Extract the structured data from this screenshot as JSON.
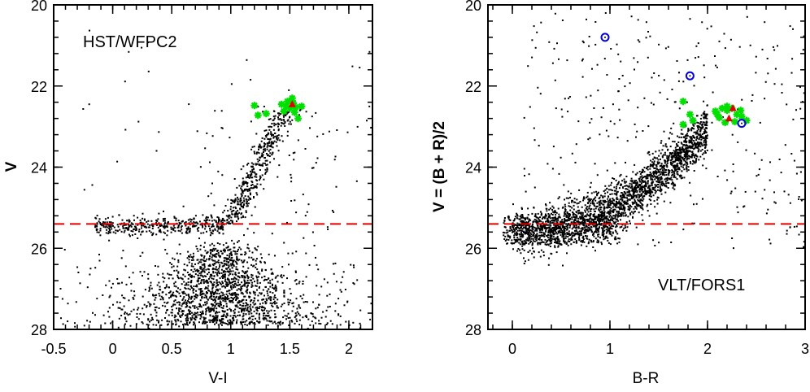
{
  "chart_data": [
    {
      "type": "scatter",
      "title": "HST/WFPC2",
      "xlabel": "V-I",
      "ylabel": "V",
      "xlim": [
        -0.5,
        2.2
      ],
      "ylim": [
        28,
        20
      ],
      "y_inverted": true,
      "x_ticks": [
        "-0.5",
        "0",
        "0.5",
        "1",
        "1.5",
        "2"
      ],
      "y_ticks": [
        "20",
        "22",
        "24",
        "26",
        "28"
      ],
      "reference_line": {
        "y": 25.4,
        "color": "#e00000",
        "style": "dashed"
      },
      "field_stars": {
        "color": "#000000",
        "components": [
          {
            "name": "RGB",
            "x_range": [
              1.0,
              1.5
            ],
            "y_range": [
              22.6,
              25.4
            ],
            "count": 420
          },
          {
            "name": "upper RGB spread",
            "x_range": [
              0.7,
              1.9
            ],
            "y_range": [
              22.5,
              26
            ],
            "count": 80
          },
          {
            "name": "HB",
            "x_range": [
              -0.15,
              0.95
            ],
            "y_range": [
              25.1,
              25.8
            ],
            "count": 380
          },
          {
            "name": "MS/SGB",
            "x_range": [
              0.1,
              1.7
            ],
            "y_range": [
              25.8,
              27.9
            ],
            "count": 1500
          },
          {
            "name": "faint halo",
            "x_range": [
              -0.45,
              2.1
            ],
            "y_range": [
              26,
              28
            ],
            "count": 200
          },
          {
            "name": "bright field",
            "x_range": [
              -0.3,
              2.2
            ],
            "y_range": [
              20.5,
              25
            ],
            "count": 40
          }
        ]
      },
      "series": [
        {
          "marker": "star",
          "color": "#00e000",
          "x": [
            1.2,
            1.23,
            1.3,
            1.43,
            1.45,
            1.48,
            1.5,
            1.52,
            1.53,
            1.55,
            1.57,
            1.6,
            1.54,
            1.47
          ],
          "y": [
            22.48,
            22.72,
            22.68,
            22.45,
            22.62,
            22.38,
            22.55,
            22.3,
            22.42,
            22.52,
            22.8,
            22.5,
            22.65,
            22.5
          ]
        },
        {
          "marker": "triangle",
          "color": "#e00000",
          "x": [
            1.52
          ],
          "y": [
            22.45
          ]
        }
      ]
    },
    {
      "type": "scatter",
      "title": "VLT/FORS1",
      "xlabel": "B-R",
      "ylabel": "V = (B + R)/2",
      "xlim": [
        -0.25,
        3.0
      ],
      "ylim": [
        28,
        20
      ],
      "y_inverted": true,
      "x_ticks": [
        "0",
        "1",
        "2",
        "3"
      ],
      "y_ticks": [
        "20",
        "22",
        "24",
        "26",
        "28"
      ],
      "reference_line": {
        "y": 25.4,
        "color": "#e00000",
        "style": "dashed"
      },
      "field_stars": {
        "color": "#000000",
        "components": [
          {
            "name": "RGB band",
            "x_range": [
              0.0,
              2.0
            ],
            "y_range": [
              23.2,
              25.8
            ],
            "count": 2200
          },
          {
            "name": "faint base",
            "x_range": [
              -0.1,
              1.1
            ],
            "y_range": [
              25.2,
              25.9
            ],
            "count": 500
          },
          {
            "name": "field",
            "x_range": [
              0.1,
              3.0
            ],
            "y_range": [
              20.2,
              26
            ],
            "count": 320
          }
        ]
      },
      "series": [
        {
          "marker": "star",
          "color": "#00e000",
          "x": [
            1.75,
            1.82,
            1.85,
            1.75,
            2.08,
            2.12,
            2.15,
            2.18,
            2.2,
            2.25,
            2.3,
            2.35,
            2.4,
            2.1,
            2.2,
            2.28,
            2.34
          ],
          "y": [
            22.38,
            22.7,
            22.85,
            22.95,
            22.62,
            22.78,
            22.55,
            22.9,
            22.6,
            22.55,
            22.7,
            22.75,
            22.85,
            22.7,
            22.5,
            22.88,
            22.6
          ]
        },
        {
          "marker": "open-circle",
          "color": "#0000e0",
          "x": [
            0.95,
            1.82,
            2.35
          ],
          "y": [
            20.8,
            21.75,
            22.92
          ]
        },
        {
          "marker": "triangle",
          "color": "#e00000",
          "x": [
            2.26,
            2.22
          ],
          "y": [
            22.55,
            22.8
          ]
        }
      ]
    }
  ]
}
